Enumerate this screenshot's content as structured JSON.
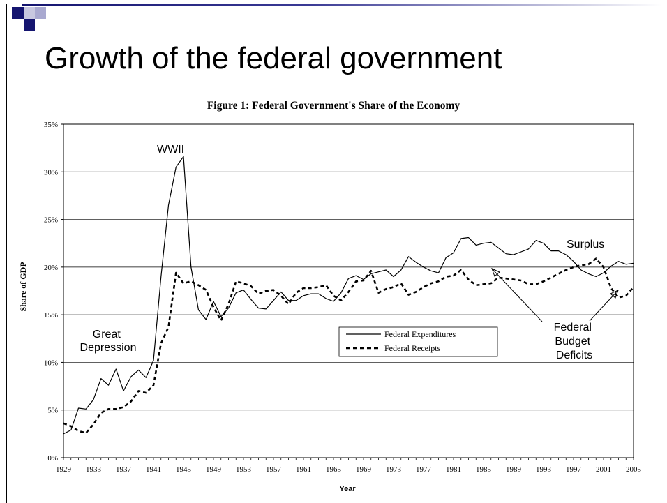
{
  "slide": {
    "title": "Growth of the federal government",
    "colors": {
      "bar_dark": "#151570",
      "bar_light": "#c8c8e0"
    }
  },
  "chart_data": {
    "type": "line",
    "title": "Figure 1:  Federal Government's Share of the Economy",
    "xlabel": "Year",
    "ylabel": "Share of GDP",
    "xlim": [
      1929,
      2005
    ],
    "ylim": [
      0,
      35
    ],
    "y_ticks": [
      0,
      5,
      10,
      15,
      20,
      25,
      30,
      35
    ],
    "y_tick_labels": [
      "0%",
      "5%",
      "10%",
      "15%",
      "20%",
      "25%",
      "30%",
      "35%"
    ],
    "x_ticks": [
      1929,
      1933,
      1937,
      1941,
      1945,
      1949,
      1953,
      1957,
      1961,
      1965,
      1969,
      1973,
      1977,
      1981,
      1985,
      1989,
      1993,
      1997,
      2001,
      2005
    ],
    "grid": "horizontal",
    "legend_position": "center-right",
    "x": [
      1929,
      1930,
      1931,
      1932,
      1933,
      1934,
      1935,
      1936,
      1937,
      1938,
      1939,
      1940,
      1941,
      1942,
      1943,
      1944,
      1945,
      1946,
      1947,
      1948,
      1949,
      1950,
      1951,
      1952,
      1953,
      1954,
      1955,
      1956,
      1957,
      1958,
      1959,
      1960,
      1961,
      1962,
      1963,
      1964,
      1965,
      1966,
      1967,
      1968,
      1969,
      1970,
      1971,
      1972,
      1973,
      1974,
      1975,
      1976,
      1977,
      1978,
      1979,
      1980,
      1981,
      1982,
      1983,
      1984,
      1985,
      1986,
      1987,
      1988,
      1989,
      1990,
      1991,
      1992,
      1993,
      1994,
      1995,
      1996,
      1997,
      1998,
      1999,
      2000,
      2001,
      2002,
      2003,
      2004,
      2005
    ],
    "series": [
      {
        "name": "Federal Expenditures",
        "style": "solid",
        "values": [
          2.5,
          2.9,
          5.2,
          5.1,
          6.1,
          8.3,
          7.6,
          9.3,
          7.0,
          8.5,
          9.2,
          8.4,
          10.2,
          19.0,
          26.5,
          30.5,
          31.6,
          20.0,
          15.5,
          14.5,
          16.4,
          14.8,
          15.7,
          17.3,
          17.6,
          16.6,
          15.7,
          15.6,
          16.5,
          17.4,
          16.5,
          16.5,
          17.0,
          17.2,
          17.2,
          16.7,
          16.4,
          17.3,
          18.8,
          19.1,
          18.7,
          19.3,
          19.5,
          19.7,
          19.0,
          19.7,
          21.1,
          20.5,
          20.0,
          19.6,
          19.4,
          21.0,
          21.5,
          23.0,
          23.1,
          22.3,
          22.5,
          22.6,
          22.0,
          21.4,
          21.3,
          21.6,
          21.9,
          22.8,
          22.5,
          21.7,
          21.7,
          21.3,
          20.6,
          19.7,
          19.3,
          19.0,
          19.4,
          20.1,
          20.6,
          20.3,
          20.4
        ]
      },
      {
        "name": "Federal Receipts",
        "style": "dashed",
        "values": [
          3.6,
          3.3,
          2.8,
          2.6,
          3.5,
          4.7,
          5.1,
          5.1,
          5.3,
          5.9,
          7.0,
          6.8,
          7.6,
          12.0,
          13.7,
          19.4,
          18.3,
          18.5,
          18.1,
          17.6,
          15.8,
          14.4,
          16.1,
          18.5,
          18.3,
          18.0,
          17.2,
          17.5,
          17.6,
          17.0,
          16.1,
          17.3,
          17.8,
          17.8,
          17.9,
          18.1,
          17.0,
          16.5,
          17.4,
          18.5,
          18.6,
          19.6,
          17.3,
          17.7,
          17.9,
          18.3,
          17.1,
          17.4,
          17.9,
          18.3,
          18.5,
          19.0,
          19.1,
          19.7,
          18.7,
          18.1,
          18.2,
          18.3,
          18.9,
          18.8,
          18.7,
          18.6,
          18.2,
          18.2,
          18.5,
          18.9,
          19.3,
          19.7,
          20.0,
          20.2,
          20.3,
          20.9,
          20.0,
          17.8,
          16.8,
          17.0,
          17.9
        ]
      }
    ],
    "annotations": [
      {
        "text": "WWII"
      },
      {
        "text": "Great Depression"
      },
      {
        "text": "Surplus"
      },
      {
        "text": "Federal Budget Deficits"
      }
    ]
  }
}
